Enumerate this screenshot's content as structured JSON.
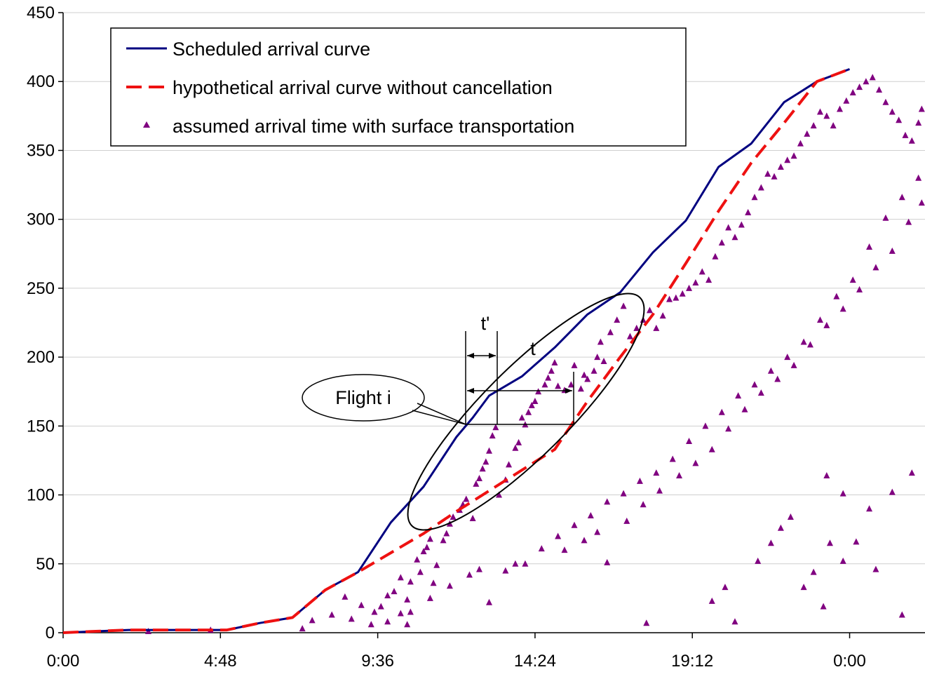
{
  "chart_data": {
    "type": "line",
    "x_unit": "hours",
    "xlim": [
      0,
      26.3
    ],
    "ylim": [
      0,
      450
    ],
    "x_ticks": [
      {
        "value": 0,
        "label": "0:00"
      },
      {
        "value": 4.8,
        "label": "4:48"
      },
      {
        "value": 9.6,
        "label": "9:36"
      },
      {
        "value": 14.4,
        "label": "14:24"
      },
      {
        "value": 19.2,
        "label": "19:12"
      },
      {
        "value": 24.0,
        "label": "0:00"
      }
    ],
    "y_ticks": [
      0,
      50,
      100,
      150,
      200,
      250,
      300,
      350,
      400,
      450
    ],
    "y_grid": true,
    "legend": {
      "placement": "top-left",
      "entries": [
        {
          "label": "Scheduled arrival curve",
          "style": "solid-line",
          "color": "#000080"
        },
        {
          "label": "hypothetical arrival curve without cancellation",
          "style": "dashed-line",
          "color": "#ee1111"
        },
        {
          "label": "assumed arrival time with surface transportation",
          "style": "triangle-marker",
          "color": "#800080"
        }
      ]
    },
    "series": [
      {
        "style": "solid",
        "color": "#000080",
        "points": [
          [
            0,
            0
          ],
          [
            1,
            1
          ],
          [
            2,
            2
          ],
          [
            3,
            2
          ],
          [
            4,
            2
          ],
          [
            5,
            2
          ],
          [
            6,
            7
          ],
          [
            7,
            11
          ],
          [
            8,
            31
          ],
          [
            9,
            44
          ],
          [
            10,
            80
          ],
          [
            11,
            106
          ],
          [
            12,
            142
          ],
          [
            12.5,
            156
          ],
          [
            13,
            172
          ],
          [
            14,
            186
          ],
          [
            15,
            207
          ],
          [
            16,
            231
          ],
          [
            17,
            247
          ],
          [
            18,
            276
          ],
          [
            19,
            299
          ],
          [
            20,
            338
          ],
          [
            21,
            355
          ],
          [
            22,
            385
          ],
          [
            23,
            400
          ],
          [
            24,
            409
          ]
        ]
      },
      {
        "style": "dashed",
        "color": "#ee1111",
        "points": [
          [
            0,
            0
          ],
          [
            1,
            1
          ],
          [
            2,
            2
          ],
          [
            3,
            2
          ],
          [
            4,
            2
          ],
          [
            5,
            2
          ],
          [
            6,
            7
          ],
          [
            7,
            11
          ],
          [
            8,
            31
          ],
          [
            9,
            44
          ],
          [
            10,
            58
          ],
          [
            11,
            72
          ],
          [
            12,
            88
          ],
          [
            13,
            103
          ],
          [
            14,
            118
          ],
          [
            15,
            133
          ],
          [
            16,
            168
          ],
          [
            17,
            200
          ],
          [
            18,
            231
          ],
          [
            19,
            268
          ],
          [
            20,
            306
          ],
          [
            21,
            341
          ],
          [
            22,
            370
          ],
          [
            23,
            400
          ],
          [
            24,
            409
          ]
        ]
      }
    ],
    "scatter": {
      "color": "#800080",
      "points": [
        [
          2.6,
          1
        ],
        [
          4.5,
          2
        ],
        [
          7.3,
          3
        ],
        [
          7.6,
          9
        ],
        [
          8.2,
          13
        ],
        [
          8.8,
          10
        ],
        [
          8.6,
          26
        ],
        [
          9.4,
          6
        ],
        [
          9.5,
          15
        ],
        [
          9.7,
          19
        ],
        [
          9.9,
          27
        ],
        [
          10.1,
          30
        ],
        [
          10.3,
          14
        ],
        [
          10.3,
          40
        ],
        [
          10.5,
          6
        ],
        [
          10.5,
          24
        ],
        [
          10.6,
          37
        ],
        [
          10.8,
          53
        ],
        [
          10.9,
          44
        ],
        [
          11,
          59
        ],
        [
          11.1,
          62
        ],
        [
          11.2,
          68
        ],
        [
          11.3,
          36
        ],
        [
          11.4,
          49
        ],
        [
          11.6,
          67
        ],
        [
          11.7,
          72
        ],
        [
          11.8,
          79
        ],
        [
          11.9,
          84
        ],
        [
          12.1,
          89
        ],
        [
          12.2,
          93
        ],
        [
          12.3,
          97
        ],
        [
          12.5,
          83
        ],
        [
          12.6,
          108
        ],
        [
          12.7,
          112
        ],
        [
          12.8,
          119
        ],
        [
          12.9,
          124
        ],
        [
          13,
          132
        ],
        [
          13.1,
          143
        ],
        [
          13.2,
          149
        ],
        [
          13.3,
          100
        ],
        [
          13.5,
          111
        ],
        [
          13.6,
          122
        ],
        [
          13.8,
          134
        ],
        [
          13.9,
          138
        ],
        [
          14,
          156
        ],
        [
          14.1,
          151
        ],
        [
          14.2,
          160
        ],
        [
          14.3,
          165
        ],
        [
          14.4,
          168
        ],
        [
          14.5,
          175
        ],
        [
          14.7,
          180
        ],
        [
          14.8,
          185
        ],
        [
          14.9,
          190
        ],
        [
          15,
          196
        ],
        [
          15.1,
          179
        ],
        [
          15.3,
          176
        ],
        [
          15.5,
          180
        ],
        [
          15.6,
          194
        ],
        [
          15.8,
          177
        ],
        [
          15.9,
          187
        ],
        [
          16,
          184
        ],
        [
          16.2,
          190
        ],
        [
          16.3,
          200
        ],
        [
          16.4,
          211
        ],
        [
          16.5,
          197
        ],
        [
          16.7,
          218
        ],
        [
          16.9,
          227
        ],
        [
          17.1,
          237
        ],
        [
          17.3,
          215
        ],
        [
          17.5,
          221
        ],
        [
          17.7,
          227
        ],
        [
          17.9,
          234
        ],
        [
          18.1,
          221
        ],
        [
          18.3,
          230
        ],
        [
          18.5,
          242
        ],
        [
          18.7,
          243
        ],
        [
          18.9,
          246
        ],
        [
          19.1,
          250
        ],
        [
          19.3,
          254
        ],
        [
          19.5,
          262
        ],
        [
          19.7,
          256
        ],
        [
          19.9,
          273
        ],
        [
          20.1,
          283
        ],
        [
          20.3,
          294
        ],
        [
          20.5,
          287
        ],
        [
          20.7,
          296
        ],
        [
          20.9,
          305
        ],
        [
          21.1,
          316
        ],
        [
          21.3,
          323
        ],
        [
          21.5,
          333
        ],
        [
          21.7,
          331
        ],
        [
          21.9,
          338
        ],
        [
          22.1,
          343
        ],
        [
          22.3,
          346
        ],
        [
          22.5,
          355
        ],
        [
          22.7,
          362
        ],
        [
          22.9,
          368
        ],
        [
          23.1,
          378
        ],
        [
          23.3,
          375
        ],
        [
          23.5,
          368
        ],
        [
          23.7,
          380
        ],
        [
          23.9,
          386
        ],
        [
          24.1,
          392
        ],
        [
          24.3,
          396
        ],
        [
          24.5,
          400
        ],
        [
          24.7,
          403
        ],
        [
          24.9,
          394
        ],
        [
          25.1,
          385
        ],
        [
          25.3,
          378
        ],
        [
          25.5,
          372
        ],
        [
          25.7,
          361
        ],
        [
          25.9,
          357
        ],
        [
          26.1,
          370
        ],
        [
          26.2,
          380
        ],
        [
          9.1,
          20
        ],
        [
          9.9,
          8
        ],
        [
          10.6,
          15
        ],
        [
          11.2,
          25
        ],
        [
          11.8,
          34
        ],
        [
          12.4,
          42
        ],
        [
          13,
          22
        ],
        [
          13.5,
          45
        ],
        [
          14.1,
          50
        ],
        [
          14.6,
          61
        ],
        [
          15.1,
          70
        ],
        [
          15.6,
          78
        ],
        [
          16.1,
          85
        ],
        [
          16.6,
          95
        ],
        [
          17.1,
          101
        ],
        [
          17.6,
          110
        ],
        [
          18.1,
          116
        ],
        [
          18.6,
          126
        ],
        [
          19.1,
          139
        ],
        [
          19.6,
          150
        ],
        [
          20.1,
          160
        ],
        [
          20.6,
          172
        ],
        [
          21.1,
          180
        ],
        [
          21.6,
          190
        ],
        [
          22.1,
          200
        ],
        [
          22.6,
          211
        ],
        [
          23.1,
          227
        ],
        [
          23.6,
          244
        ],
        [
          24.1,
          256
        ],
        [
          24.6,
          280
        ],
        [
          25.1,
          301
        ],
        [
          25.6,
          316
        ],
        [
          26.1,
          330
        ],
        [
          23.8,
          52
        ],
        [
          24.2,
          66
        ],
        [
          24.6,
          90
        ],
        [
          24.8,
          46
        ],
        [
          25.3,
          102
        ],
        [
          25.9,
          116
        ],
        [
          25.6,
          13
        ],
        [
          22.6,
          33
        ],
        [
          22.9,
          44
        ],
        [
          23.4,
          65
        ],
        [
          23.8,
          101
        ],
        [
          23.2,
          19
        ],
        [
          19.8,
          23
        ],
        [
          20.2,
          33
        ],
        [
          20.5,
          8
        ],
        [
          21.2,
          52
        ],
        [
          21.6,
          65
        ],
        [
          21.9,
          76
        ],
        [
          22.2,
          84
        ],
        [
          16.6,
          51
        ],
        [
          17.8,
          7
        ],
        [
          23.3,
          114
        ],
        [
          13.8,
          50
        ],
        [
          12.7,
          46
        ],
        [
          15.3,
          60
        ],
        [
          15.9,
          67
        ],
        [
          16.3,
          73
        ],
        [
          17.2,
          81
        ],
        [
          17.7,
          93
        ],
        [
          18.2,
          103
        ],
        [
          18.8,
          114
        ],
        [
          19.3,
          123
        ],
        [
          19.8,
          133
        ],
        [
          20.3,
          148
        ],
        [
          20.8,
          162
        ],
        [
          21.3,
          174
        ],
        [
          21.8,
          184
        ],
        [
          22.3,
          194
        ],
        [
          22.8,
          209
        ],
        [
          23.3,
          223
        ],
        [
          23.8,
          235
        ],
        [
          24.3,
          249
        ],
        [
          24.8,
          265
        ],
        [
          25.3,
          277
        ],
        [
          25.8,
          298
        ],
        [
          26.2,
          312
        ]
      ]
    },
    "annotations": {
      "callout_label": "Flight i",
      "t_prime_label": "t'",
      "t_label": "t"
    }
  }
}
